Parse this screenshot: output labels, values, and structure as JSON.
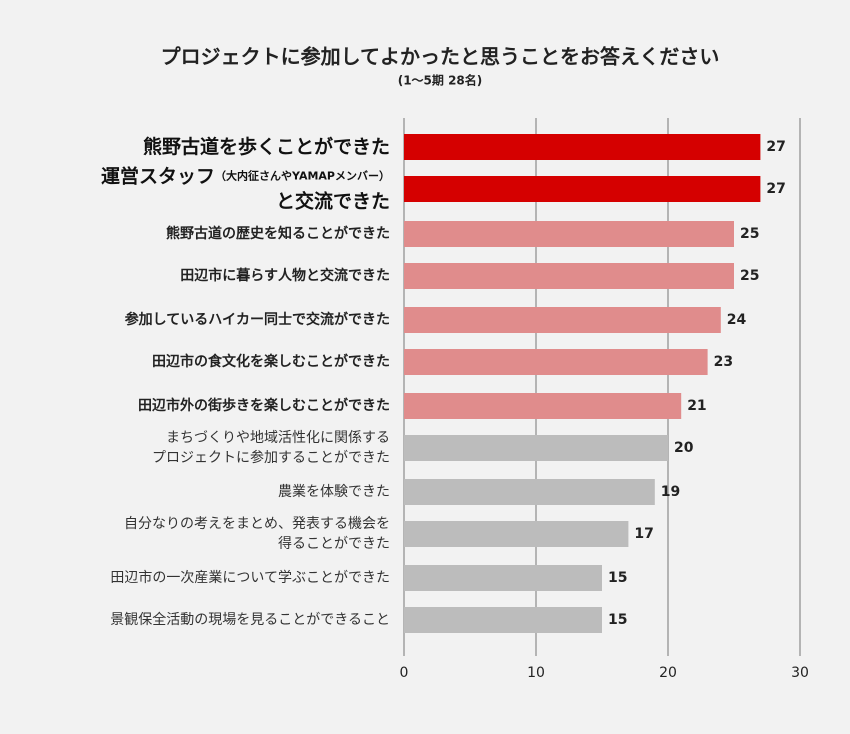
{
  "chart_data": {
    "type": "bar",
    "orientation": "horizontal",
    "title": "プロジェクトに参加してよかったと思うことをお答えください",
    "subtitle": "(1〜5期 28名)",
    "categories": [
      [
        "熊野古道を歩くことができた"
      ],
      [
        "運営スタッフ",
        "（大内征さんやYAMAPメンバー）",
        "と交流できた"
      ],
      [
        "熊野古道の歴史を知ることができた"
      ],
      [
        "田辺市に暮らす人物と交流できた"
      ],
      [
        "参加しているハイカー同士で交流ができた"
      ],
      [
        "田辺市の食文化を楽しむことができた"
      ],
      [
        "田辺市外の街歩きを楽しむことができた"
      ],
      [
        "まちづくりや地域活性化に関係する",
        "プロジェクトに参加することができた"
      ],
      [
        "農業を体験できた"
      ],
      [
        "自分なりの考えをまとめ、発表する機会を",
        "得ることができた"
      ],
      [
        "田辺市の一次産業について学ぶことができた"
      ],
      [
        "景観保全活動の現場を見ることができること"
      ]
    ],
    "values": [
      27,
      27,
      25,
      25,
      24,
      23,
      21,
      20,
      19,
      17,
      15,
      15
    ],
    "colors": [
      "#d50000",
      "#d50000",
      "#e08c8c",
      "#e08c8c",
      "#e08c8c",
      "#e08c8c",
      "#e08c8c",
      "#bcbcbc",
      "#bcbcbc",
      "#bcbcbc",
      "#bcbcbc",
      "#bcbcbc"
    ],
    "xlim": [
      0,
      30
    ],
    "xticks": [
      0,
      10,
      20,
      30
    ],
    "grid": true
  }
}
